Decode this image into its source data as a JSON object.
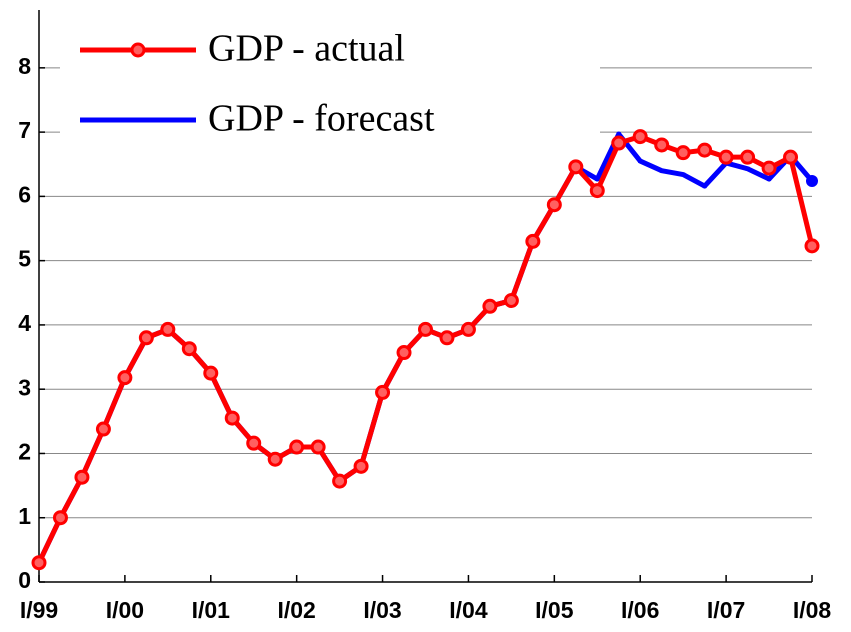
{
  "chart_data": {
    "type": "line",
    "categories": [
      "I/99",
      null,
      null,
      null,
      "I/00",
      null,
      null,
      null,
      "I/01",
      null,
      null,
      null,
      "I/02",
      null,
      null,
      null,
      "I/03",
      null,
      null,
      null,
      "I/04",
      null,
      null,
      null,
      "I/05",
      null,
      null,
      null,
      "I/06",
      null,
      null,
      null,
      "I/07",
      null,
      null,
      null,
      "I/08"
    ],
    "series": [
      {
        "name": "GDP - actual",
        "color": "#ff0000",
        "values": [
          0.3,
          1.0,
          1.63,
          2.38,
          3.18,
          3.8,
          3.93,
          3.63,
          3.25,
          2.55,
          2.16,
          1.91,
          2.1,
          2.1,
          1.57,
          1.8,
          2.95,
          3.57,
          3.93,
          3.8,
          3.93,
          4.29,
          4.38,
          5.3,
          5.87,
          6.46,
          6.09,
          6.83,
          6.93,
          6.8,
          6.68,
          6.72,
          6.61,
          6.61,
          6.44,
          6.61,
          5.23
        ]
      },
      {
        "name": "GDP - forecast",
        "color": "#0000ff",
        "values": [
          0.3,
          1.0,
          1.63,
          2.38,
          3.18,
          3.8,
          3.93,
          3.63,
          3.25,
          2.55,
          2.16,
          1.91,
          2.1,
          2.1,
          1.57,
          1.8,
          2.95,
          3.57,
          3.93,
          3.8,
          3.93,
          4.29,
          4.38,
          5.3,
          5.87,
          6.46,
          6.27,
          6.97,
          6.55,
          6.4,
          6.34,
          6.16,
          6.52,
          6.43,
          6.27,
          6.63,
          6.24
        ]
      }
    ],
    "ylim": [
      0,
      8.9
    ],
    "yticks": [
      0,
      1,
      2,
      3,
      4,
      5,
      6,
      7,
      8
    ],
    "grid": true,
    "legend": "upper-left"
  }
}
